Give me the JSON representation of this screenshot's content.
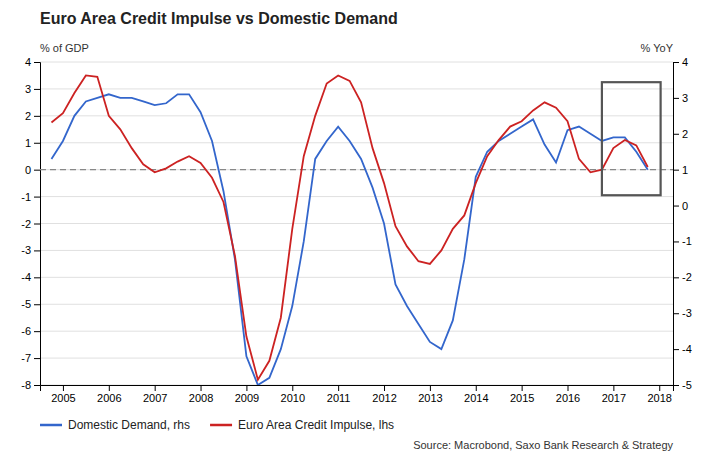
{
  "chart_data": {
    "type": "line",
    "title": "Euro Area Credit Impulse vs Domestic Demand",
    "ylabel": "% of GDP",
    "y2label": "% YoY",
    "source": "Source: Macrobond, Saxo Bank Research & Strategy",
    "x": [
      2004.75,
      2005.0,
      2005.25,
      2005.5,
      2005.75,
      2006.0,
      2006.25,
      2006.5,
      2006.75,
      2007.0,
      2007.25,
      2007.5,
      2007.75,
      2008.0,
      2008.25,
      2008.5,
      2008.75,
      2009.0,
      2009.25,
      2009.5,
      2009.75,
      2010.0,
      2010.25,
      2010.5,
      2010.75,
      2011.0,
      2011.25,
      2011.5,
      2011.75,
      2012.0,
      2012.25,
      2012.5,
      2012.75,
      2013.0,
      2013.25,
      2013.5,
      2013.75,
      2014.0,
      2014.25,
      2014.5,
      2014.75,
      2015.0,
      2015.25,
      2015.5,
      2015.75,
      2016.0,
      2016.25,
      2016.5,
      2016.75,
      2017.0,
      2017.25,
      2017.5,
      2017.75
    ],
    "series": [
      {
        "name": "Domestic Demand, rhs",
        "color": "#3366cc",
        "axis": "y2",
        "values": [
          1.3,
          1.8,
          2.5,
          2.9,
          3.0,
          3.1,
          3.0,
          3.0,
          2.9,
          2.8,
          2.85,
          3.1,
          3.1,
          2.6,
          1.8,
          0.4,
          -1.5,
          -4.2,
          -5.0,
          -4.8,
          -4.0,
          -2.8,
          -1.0,
          1.3,
          1.8,
          2.2,
          1.8,
          1.3,
          0.5,
          -0.5,
          -2.2,
          -2.8,
          -3.3,
          -3.8,
          -4.0,
          -3.2,
          -1.5,
          0.8,
          1.5,
          1.8,
          2.0,
          2.2,
          2.4,
          1.7,
          1.2,
          2.1,
          2.2,
          2.0,
          1.8,
          1.9,
          1.9,
          1.5,
          1.0
        ]
      },
      {
        "name": "Euro Area Credit Impulse, lhs",
        "color": "#cc2222",
        "values": [
          1.75,
          2.1,
          2.85,
          3.5,
          3.45,
          2.0,
          1.5,
          0.8,
          0.2,
          -0.1,
          0.05,
          0.3,
          0.5,
          0.25,
          -0.3,
          -1.2,
          -3.2,
          -6.2,
          -7.8,
          -7.1,
          -5.5,
          -2.2,
          0.5,
          2.0,
          3.2,
          3.5,
          3.3,
          2.5,
          0.8,
          -0.5,
          -2.1,
          -2.85,
          -3.4,
          -3.5,
          -3.0,
          -2.2,
          -1.7,
          -0.5,
          0.5,
          1.1,
          1.6,
          1.8,
          2.2,
          2.5,
          2.3,
          1.8,
          0.4,
          -0.1,
          0.0,
          0.8,
          1.1,
          0.9,
          0.1
        ]
      }
    ],
    "xlim": [
      2004.5,
      2018.3
    ],
    "xticks": [
      2005,
      2006,
      2007,
      2008,
      2009,
      2010,
      2011,
      2012,
      2013,
      2014,
      2015,
      2016,
      2017,
      2018
    ],
    "ylim": [
      -8,
      4
    ],
    "yticks": [
      -8,
      -7,
      -6,
      -5,
      -4,
      -3,
      -2,
      -1,
      0,
      1,
      2,
      3,
      4
    ],
    "y2lim": [
      -5,
      4
    ],
    "y2ticks": [
      -5,
      -4,
      -3,
      -2,
      -1,
      0,
      1,
      2,
      3,
      4
    ],
    "grid": true,
    "legend": "bottom",
    "annotations": [
      {
        "type": "reference_line",
        "y": 0,
        "color": "#888888",
        "line_style": "dashed"
      },
      {
        "type": "rect",
        "x": 2016.75,
        "width": 1.28,
        "y_bottom": -0.95,
        "y_top": 3.25,
        "color": "#555555"
      }
    ]
  }
}
